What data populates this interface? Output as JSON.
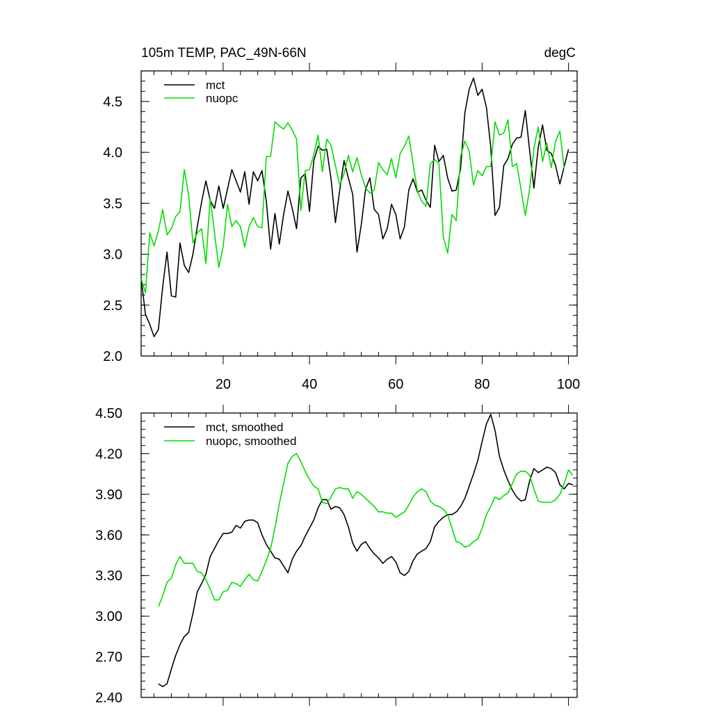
{
  "chart_data": [
    {
      "type": "line",
      "title": "105m TEMP, PAC_49N-66N",
      "units": "degC",
      "xlim": [
        1,
        102
      ],
      "ylim": [
        2.0,
        4.8
      ],
      "x_ticks": [
        20,
        40,
        60,
        80,
        100
      ],
      "x_tick_labels": [
        "20",
        "40",
        "60",
        "80",
        "100"
      ],
      "y_ticks": [
        2.0,
        2.5,
        3.0,
        3.5,
        4.0,
        4.5
      ],
      "y_tick_labels": [
        "2.0",
        "2.5",
        "3.0",
        "3.5",
        "4.0",
        "4.5"
      ],
      "legend": [
        {
          "label": "mct",
          "color": "#000000"
        },
        {
          "label": "nuopc",
          "color": "#00dd00"
        }
      ],
      "series": [
        {
          "name": "mct",
          "color": "#000000",
          "x_start": 1,
          "values": [
            2.76,
            2.41,
            2.31,
            2.19,
            2.26,
            2.68,
            3.02,
            2.59,
            2.58,
            3.11,
            2.89,
            2.82,
            3.0,
            3.27,
            3.51,
            3.72,
            3.53,
            3.45,
            3.67,
            3.45,
            3.64,
            3.83,
            3.72,
            3.61,
            3.81,
            3.49,
            3.81,
            3.72,
            3.82,
            3.52,
            3.05,
            3.4,
            3.1,
            3.39,
            3.62,
            3.45,
            3.25,
            3.75,
            3.79,
            3.42,
            3.92,
            4.06,
            4.02,
            4.03,
            3.74,
            3.31,
            3.63,
            3.92,
            3.75,
            3.59,
            3.02,
            3.29,
            3.64,
            3.75,
            3.44,
            3.39,
            3.15,
            3.25,
            3.49,
            3.39,
            3.15,
            3.27,
            3.63,
            3.74,
            3.61,
            3.63,
            3.53,
            3.46,
            4.07,
            3.91,
            3.97,
            3.75,
            3.62,
            3.63,
            3.84,
            4.39,
            4.62,
            4.73,
            4.56,
            4.62,
            4.44,
            4.05,
            3.38,
            3.46,
            3.87,
            3.94,
            4.08,
            4.14,
            4.15,
            4.41,
            4.02,
            3.65,
            4.05,
            4.27,
            4.02,
            3.99,
            3.87,
            3.69,
            3.86,
            4.03
          ]
        },
        {
          "name": "nuopc",
          "color": "#00dd00",
          "x_start": 1,
          "values": [
            2.76,
            2.62,
            3.21,
            3.08,
            3.23,
            3.44,
            3.19,
            3.25,
            3.37,
            3.42,
            3.83,
            3.58,
            3.11,
            3.21,
            3.25,
            2.91,
            3.55,
            3.21,
            2.87,
            3.08,
            3.49,
            3.27,
            3.33,
            3.27,
            3.07,
            3.27,
            3.36,
            3.27,
            3.26,
            3.96,
            3.96,
            4.3,
            4.26,
            4.23,
            4.29,
            4.22,
            4.13,
            3.43,
            3.82,
            3.83,
            3.98,
            4.17,
            3.81,
            4.13,
            4.07,
            3.87,
            3.68,
            3.79,
            3.97,
            3.81,
            3.95,
            3.78,
            3.65,
            3.6,
            3.63,
            3.9,
            3.83,
            3.78,
            3.94,
            3.75,
            3.99,
            4.06,
            4.16,
            3.89,
            3.62,
            3.52,
            3.47,
            3.89,
            3.93,
            3.89,
            3.17,
            3.01,
            3.39,
            3.33,
            3.96,
            4.11,
            4.01,
            3.68,
            3.82,
            3.77,
            3.86,
            3.86,
            4.3,
            4.17,
            4.19,
            4.32,
            3.86,
            3.89,
            3.64,
            3.38,
            3.64,
            4.04,
            4.25,
            3.91,
            4.09,
            3.85,
            4.11,
            4.21,
            3.84
          ]
        }
      ]
    },
    {
      "type": "line",
      "title": "",
      "units": "",
      "xlim": [
        1,
        102
      ],
      "ylim": [
        2.4,
        4.5
      ],
      "x_ticks": [
        20,
        40,
        60,
        80,
        100
      ],
      "x_tick_labels": [],
      "y_ticks": [
        2.4,
        2.7,
        3.0,
        3.3,
        3.6,
        3.9,
        4.2,
        4.5
      ],
      "y_tick_labels": [
        "2.40",
        "2.70",
        "3.00",
        "3.30",
        "3.60",
        "3.90",
        "4.20",
        "4.50"
      ],
      "legend": [
        {
          "label": "mct, smoothed",
          "color": "#000000"
        },
        {
          "label": "nuopc, smoothed",
          "color": "#00dd00"
        }
      ],
      "series": [
        {
          "name": "mct, smoothed",
          "color": "#000000",
          "x_start": 5,
          "values": [
            2.5,
            2.48,
            2.5,
            2.61,
            2.71,
            2.79,
            2.85,
            2.88,
            3.02,
            3.18,
            3.24,
            3.31,
            3.44,
            3.5,
            3.56,
            3.61,
            3.61,
            3.62,
            3.67,
            3.65,
            3.7,
            3.71,
            3.71,
            3.69,
            3.6,
            3.53,
            3.48,
            3.43,
            3.42,
            3.37,
            3.32,
            3.42,
            3.48,
            3.52,
            3.59,
            3.65,
            3.71,
            3.8,
            3.86,
            3.86,
            3.79,
            3.81,
            3.8,
            3.75,
            3.66,
            3.54,
            3.48,
            3.53,
            3.55,
            3.5,
            3.46,
            3.43,
            3.39,
            3.42,
            3.44,
            3.4,
            3.32,
            3.3,
            3.33,
            3.41,
            3.46,
            3.48,
            3.5,
            3.55,
            3.66,
            3.7,
            3.73,
            3.75,
            3.75,
            3.77,
            3.81,
            3.87,
            3.96,
            4.05,
            4.15,
            4.29,
            4.42,
            4.49,
            4.37,
            4.18,
            4.08,
            4.0,
            3.93,
            3.88,
            3.85,
            3.86,
            4.0,
            4.09,
            4.06,
            4.08,
            4.1,
            4.09,
            4.06,
            3.97,
            3.94,
            3.98,
            3.97
          ]
        },
        {
          "name": "nuopc, smoothed",
          "color": "#00dd00",
          "x_start": 5,
          "values": [
            3.07,
            3.15,
            3.25,
            3.28,
            3.38,
            3.44,
            3.39,
            3.39,
            3.39,
            3.33,
            3.32,
            3.27,
            3.2,
            3.12,
            3.12,
            3.18,
            3.19,
            3.25,
            3.24,
            3.22,
            3.27,
            3.31,
            3.27,
            3.26,
            3.33,
            3.41,
            3.5,
            3.65,
            3.83,
            3.98,
            4.13,
            4.18,
            4.2,
            4.14,
            4.07,
            4.01,
            3.96,
            3.94,
            3.84,
            3.83,
            3.88,
            3.94,
            3.95,
            3.94,
            3.94,
            3.87,
            3.92,
            3.9,
            3.87,
            3.84,
            3.81,
            3.77,
            3.77,
            3.76,
            3.76,
            3.73,
            3.75,
            3.77,
            3.82,
            3.88,
            3.92,
            3.94,
            3.92,
            3.85,
            3.82,
            3.81,
            3.79,
            3.75,
            3.65,
            3.55,
            3.54,
            3.51,
            3.52,
            3.55,
            3.57,
            3.65,
            3.75,
            3.81,
            3.88,
            3.86,
            3.89,
            3.91,
            3.98,
            4.05,
            4.07,
            4.07,
            4.04,
            3.94,
            3.85,
            3.84,
            3.84,
            3.84,
            3.86,
            3.9,
            3.98,
            4.08,
            4.04
          ]
        }
      ]
    }
  ]
}
